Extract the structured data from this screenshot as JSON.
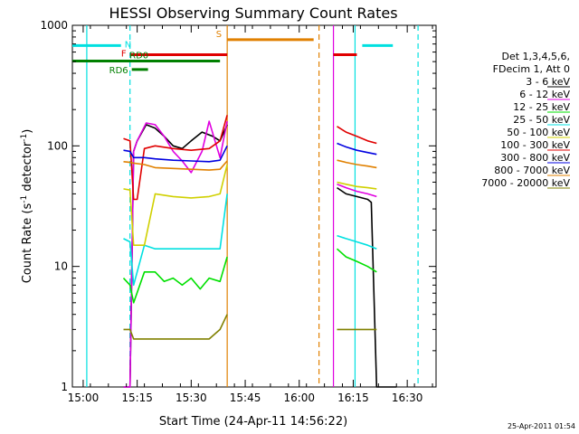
{
  "chart_data": {
    "type": "line",
    "title": "HESSI Observing Summary Count Rates",
    "xlabel": "Start Time (24-Apr-11 14:56:22)",
    "ylabel_main": "Count Rate (s",
    "ylabel_sup1": "-1",
    "ylabel_mid": " detector",
    "ylabel_sup2": "-1",
    "ylabel_end": ")",
    "yscale": "log",
    "xlim_min": [
      -3,
      38
    ],
    "ylim": [
      1,
      1000
    ],
    "xticks_min": [
      0,
      15,
      30,
      45,
      60,
      75,
      90
    ],
    "xtick_labels": [
      "15:00",
      "15:15",
      "15:30",
      "15:45",
      "16:00",
      "16:15",
      "16:30"
    ],
    "yticks": [
      1,
      10,
      100,
      1000
    ],
    "ytick_labels": [
      "1",
      "10",
      "100",
      "1000"
    ],
    "legend_title_1": "Det 1,3,4,5,6,",
    "legend_title_2": "FDecim 1, Att 0",
    "series": [
      {
        "name": "3 - 6 keV",
        "color": "#000000",
        "segments": [
          {
            "x": [
              11.2,
              13.0,
              14.0,
              15.0,
              17.5,
              20.0,
              22.5,
              25.0,
              27.5,
              30.0,
              33.0,
              36.0,
              38.0,
              40.0
            ],
            "y": [
              0,
              0,
              90,
              110,
              150,
              140,
              120,
              100,
              95,
              110,
              130,
              120,
              110,
              150
            ]
          },
          {
            "x": [
              70.5,
              73.0,
              76.0,
              79.0,
              80.0,
              81.5,
              84.0,
              87.0
            ],
            "y": [
              45,
              40,
              38,
              36,
              34,
              0,
              0,
              0
            ]
          }
        ]
      },
      {
        "name": "6 - 12 keV",
        "color": "#e000e0",
        "segments": [
          {
            "x": [
              11.2,
              13.0,
              14.0,
              15.0,
              17.5,
              20.0,
              22.5,
              25.0,
              27.5,
              30.0,
              33.0,
              35.0,
              38.0,
              40.0
            ],
            "y": [
              0,
              0,
              90,
              110,
              155,
              150,
              120,
              90,
              75,
              60,
              90,
              160,
              80,
              160
            ]
          },
          {
            "x": [
              70.5,
              73.0,
              76.0,
              79.0,
              81.5
            ],
            "y": [
              48,
              45,
              42,
              40,
              38
            ]
          }
        ]
      },
      {
        "name": "12 - 25 keV",
        "color": "#00e000",
        "segments": [
          {
            "x": [
              11.2,
              13.0,
              14.0,
              17.0,
              20.0,
              22.5,
              25.0,
              27.5,
              30.0,
              32.5,
              35.0,
              38.0,
              40.0
            ],
            "y": [
              8,
              7,
              5,
              9,
              9,
              7.5,
              8,
              7,
              8,
              6.5,
              8,
              7.5,
              12
            ]
          },
          {
            "x": [
              70.5,
              73.0,
              76.0,
              79.0,
              81.5
            ],
            "y": [
              14,
              12,
              11,
              10,
              9
            ]
          }
        ]
      },
      {
        "name": "25 - 50 keV",
        "color": "#00e0e0",
        "segments": [
          {
            "x": [
              11.2,
              13.0,
              14.0,
              17.0,
              20.0,
              25.0,
              30.0,
              35.0,
              38.0,
              40.0
            ],
            "y": [
              17,
              16,
              7,
              15,
              14,
              14,
              14,
              14,
              14,
              40
            ]
          },
          {
            "x": [
              70.5,
              73.0,
              76.0,
              79.0,
              81.5
            ],
            "y": [
              18,
              17,
              16,
              15,
              14
            ]
          }
        ]
      },
      {
        "name": "50 - 100 keV",
        "color": "#d0d000",
        "segments": [
          {
            "x": [
              11.2,
              13.0,
              14.0,
              17.0,
              20.0,
              25.0,
              30.0,
              35.0,
              38.0,
              40.0
            ],
            "y": [
              44,
              43,
              15,
              15,
              40,
              38,
              37,
              38,
              40,
              70
            ]
          },
          {
            "x": [
              70.5,
              73.0,
              76.0,
              79.0,
              81.5
            ],
            "y": [
              50,
              48,
              46,
              45,
              44
            ]
          }
        ]
      },
      {
        "name": "100 - 300 keV",
        "color": "#e00000",
        "segments": [
          {
            "x": [
              11.2,
              13.0,
              14.0,
              15.0,
              17.0,
              20.0,
              25.0,
              30.0,
              35.0,
              38.0,
              40.0
            ],
            "y": [
              115,
              110,
              36,
              36,
              95,
              100,
              95,
              92,
              95,
              110,
              180
            ]
          },
          {
            "x": [
              70.5,
              73.0,
              76.0,
              79.0,
              81.5
            ],
            "y": [
              145,
              130,
              120,
              110,
              105
            ]
          }
        ]
      },
      {
        "name": "300 - 800 keV",
        "color": "#0000e0",
        "segments": [
          {
            "x": [
              11.2,
              13.0,
              14.0,
              17.0,
              20.0,
              25.0,
              30.0,
              35.0,
              38.0,
              40.0
            ],
            "y": [
              92,
              90,
              80,
              80,
              78,
              76,
              75,
              74,
              76,
              100
            ]
          },
          {
            "x": [
              70.5,
              73.0,
              76.0,
              79.0,
              81.5
            ],
            "y": [
              105,
              98,
              92,
              88,
              85
            ]
          }
        ]
      },
      {
        "name": "800 - 7000 keV",
        "color": "#e08000",
        "segments": [
          {
            "x": [
              11.2,
              13.0,
              14.0,
              17.0,
              20.0,
              25.0,
              30.0,
              35.0,
              38.0,
              40.0
            ],
            "y": [
              74,
              73,
              72,
              70,
              66,
              65,
              64,
              63,
              64,
              75
            ]
          },
          {
            "x": [
              70.5,
              73.0,
              76.0,
              79.0,
              81.5
            ],
            "y": [
              76,
              73,
              70,
              68,
              66
            ]
          }
        ]
      },
      {
        "name": "7000 - 20000 keV",
        "color": "#808000",
        "segments": [
          {
            "x": [
              11.2,
              13.0,
              14.0,
              17.0,
              20.0,
              25.0,
              30.0,
              35.0,
              38.0,
              40.0
            ],
            "y": [
              3,
              3,
              2.5,
              2.5,
              2.5,
              2.5,
              2.5,
              2.5,
              3,
              4
            ]
          },
          {
            "x": [
              70.5,
              73.0,
              76.0,
              79.0,
              81.5
            ],
            "y": [
              3,
              3,
              3,
              3,
              3
            ]
          }
        ]
      }
    ],
    "flag_bars": [
      {
        "label": "N",
        "color": "#00e0e0",
        "y": 680,
        "segments": [
          [
            -3,
            10.5
          ],
          [
            77.5,
            86
          ]
        ]
      },
      {
        "label": "S",
        "color": "#e08000",
        "y": 760,
        "segments": [
          [
            40,
            64
          ]
        ]
      },
      {
        "label": "F",
        "color": "#e00000",
        "y": 570,
        "segments": [
          [
            13,
            40
          ],
          [
            69.5,
            76
          ]
        ]
      },
      {
        "label": "RD0",
        "color": "#008000",
        "y": 505,
        "segments": [
          [
            -3,
            38
          ]
        ]
      },
      {
        "label": "RD6",
        "color": "#008000",
        "y": 430,
        "segments": [
          [
            13.5,
            18
          ]
        ]
      }
    ],
    "vlines": [
      {
        "x": 1.0,
        "color": "#00e0e0",
        "dash": false
      },
      {
        "x": 13.0,
        "color": "#00e0e0",
        "dash": true
      },
      {
        "x": 40.0,
        "color": "#e08000",
        "dash": false
      },
      {
        "x": 65.5,
        "color": "#e08000",
        "dash": true
      },
      {
        "x": 69.5,
        "color": "#e000e0",
        "dash": false
      },
      {
        "x": 75.5,
        "color": "#00e0e0",
        "dash": false
      },
      {
        "x": 93.0,
        "color": "#00e0e0",
        "dash": true
      }
    ],
    "timestamp": "25-Apr-2011 01:54"
  }
}
